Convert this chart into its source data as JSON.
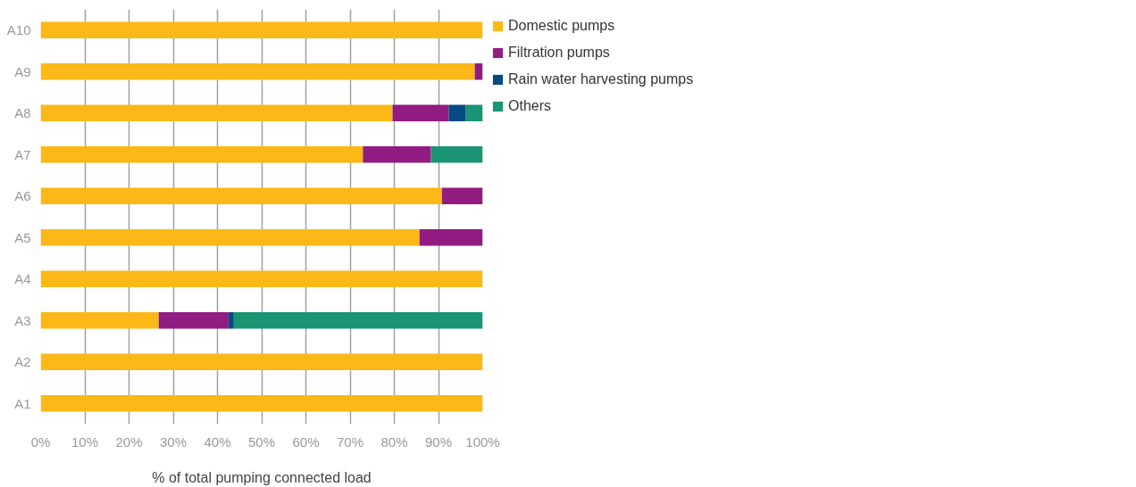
{
  "chart_data": {
    "type": "bar",
    "orientation": "horizontal",
    "stacked": true,
    "xlabel": "% of total pumping connected load",
    "categories": [
      "A10",
      "A9",
      "A8",
      "A7",
      "A6",
      "A5",
      "A4",
      "A3",
      "A2",
      "A1"
    ],
    "series": [
      {
        "name": "Domestic pumps",
        "color": "#fbb817",
        "values": [
          100,
          98.2,
          79.6,
          72.9,
          90.8,
          85.7,
          100,
          26.7,
          100,
          100
        ]
      },
      {
        "name": "Filtration pumps",
        "color": "#921c82",
        "values": [
          null,
          1.8,
          12.7,
          15.4,
          9.2,
          14.3,
          null,
          15.8,
          null,
          null
        ]
      },
      {
        "name": "Rain water harvesting pumps",
        "color": "#034b80",
        "values": [
          null,
          null,
          3.9,
          null,
          null,
          null,
          null,
          1.2,
          null,
          null
        ]
      },
      {
        "name": "Others",
        "color": "#1a9474",
        "values": [
          null,
          null,
          3.8,
          11.7,
          null,
          null,
          null,
          56.3,
          null,
          null
        ]
      }
    ],
    "xlim": [
      0,
      100
    ],
    "xticks": [
      {
        "value": 0,
        "label": "0%"
      },
      {
        "value": 10,
        "label": "10%"
      },
      {
        "value": 20,
        "label": "20%"
      },
      {
        "value": 30,
        "label": "30%"
      },
      {
        "value": 40,
        "label": "40%"
      },
      {
        "value": 50,
        "label": "50%"
      },
      {
        "value": 60,
        "label": "60%"
      },
      {
        "value": 70,
        "label": "70%"
      },
      {
        "value": 80,
        "label": "80%"
      },
      {
        "value": 90,
        "label": "90%"
      },
      {
        "value": 100,
        "label": "100%"
      }
    ],
    "grid": "x",
    "legend": "top right"
  }
}
